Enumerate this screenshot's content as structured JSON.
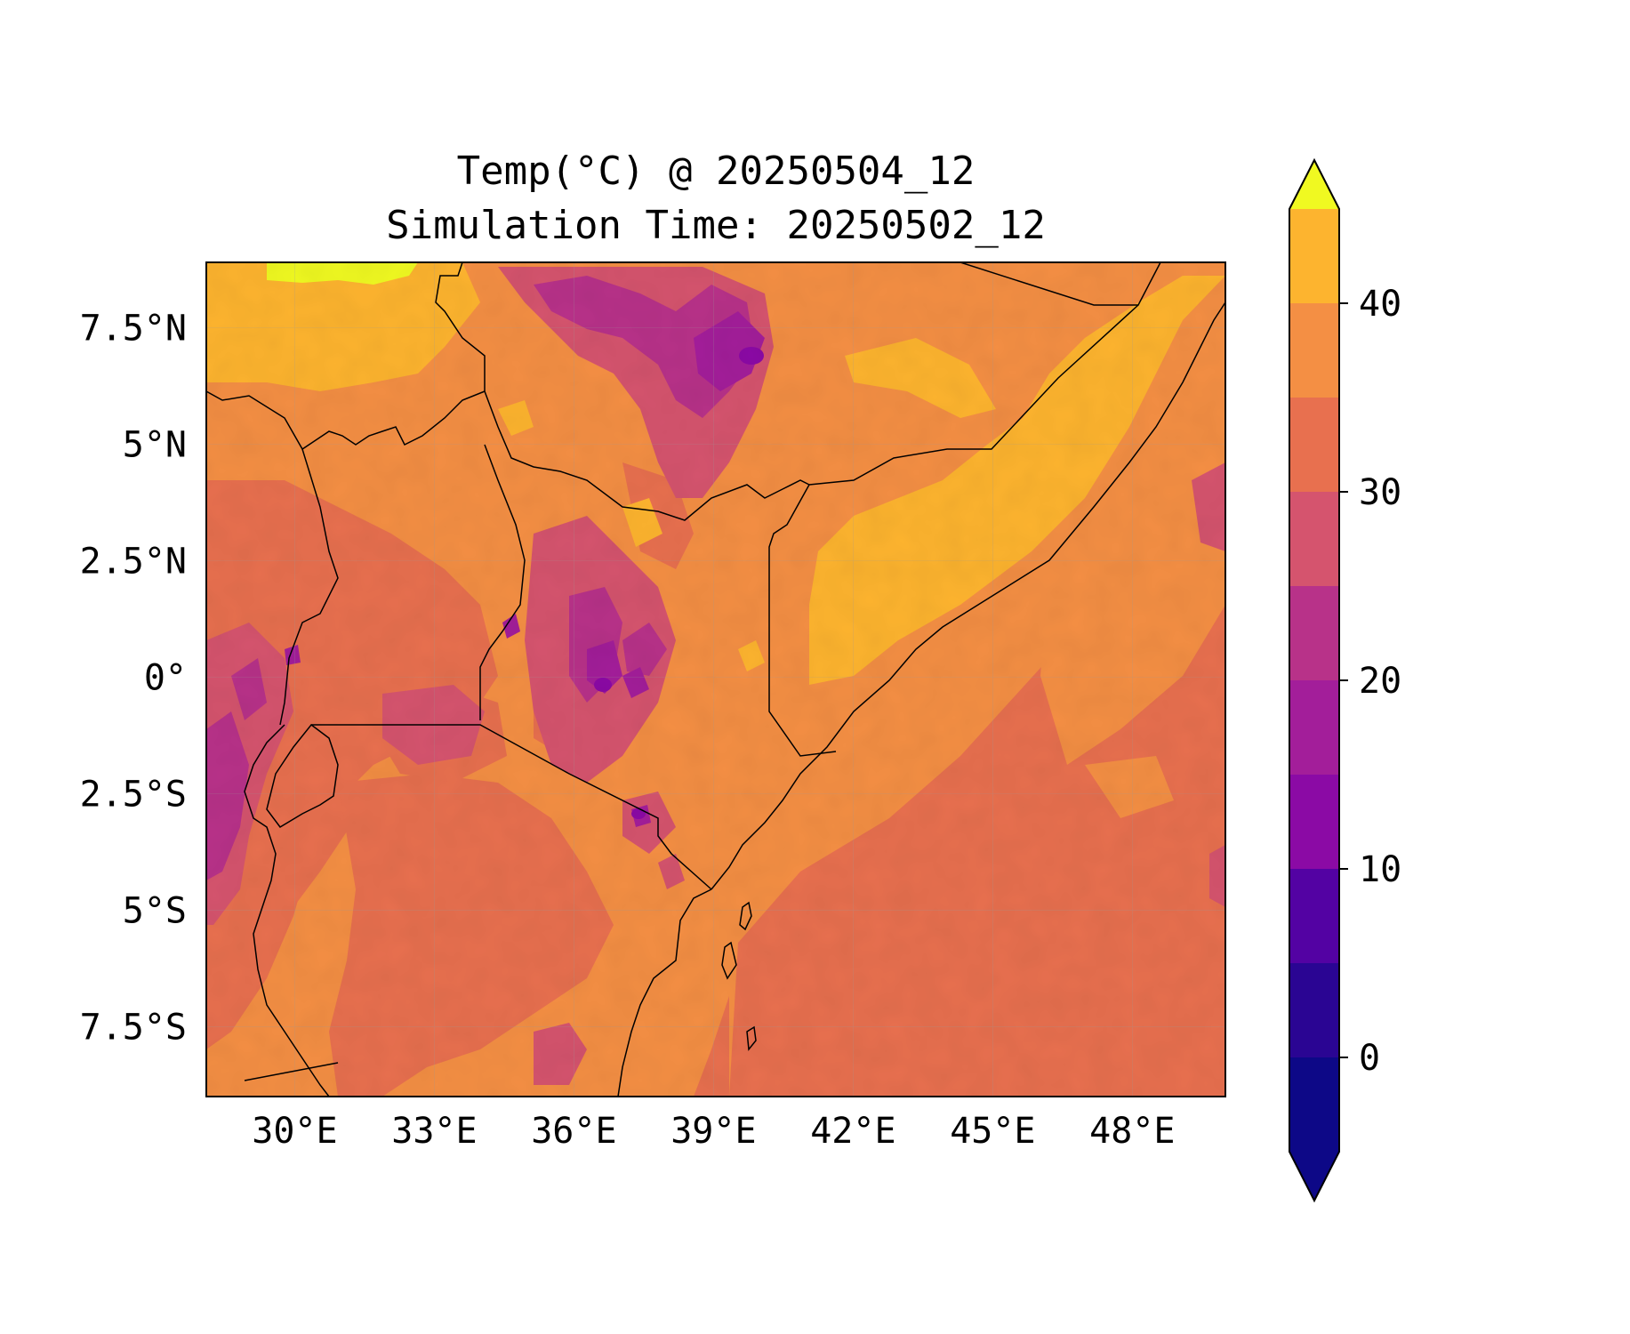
{
  "title": {
    "line1": "Temp(°C) @ 20250504_12",
    "line2": "Simulation Time: 20250502_12"
  },
  "axes": {
    "x_ticks": [
      "30°E",
      "33°E",
      "36°E",
      "39°E",
      "42°E",
      "45°E",
      "48°E"
    ],
    "y_ticks": [
      "7.5°N",
      "5°N",
      "2.5°N",
      "0°",
      "2.5°S",
      "5°S",
      "7.5°S"
    ],
    "lon_range": [
      28.1,
      50.0
    ],
    "lat_range": [
      -9.0,
      8.9
    ]
  },
  "colorbar": {
    "tick_labels": [
      "0",
      "10",
      "20",
      "30",
      "40"
    ],
    "extend": "both"
  },
  "chart_data": {
    "type": "heatmap",
    "projection": "PlateCarree (lon/lat)",
    "title": "Temp(°C) @ 20250504_12\nSimulation Time: 20250502_12",
    "x_ticks_deg": [
      30,
      33,
      36,
      39,
      42,
      45,
      48
    ],
    "y_ticks_deg": [
      7.5,
      5,
      2.5,
      0,
      -2.5,
      -5,
      -7.5
    ],
    "xlim": [
      28.1,
      50.0
    ],
    "ylim": [
      -9.0,
      8.9
    ],
    "grid": true,
    "levels": [
      -5,
      0,
      5,
      10,
      15,
      20,
      25,
      30,
      35,
      40,
      45
    ],
    "level_colors": [
      "#0d0887",
      "#2a0593",
      "#5302a3",
      "#8b0aa5",
      "#a31e9a",
      "#b83289",
      "#d5546e",
      "#e8704f",
      "#f48f44",
      "#fdb42f",
      "#f0f921"
    ],
    "extend_colors": {
      "under": "#0d0887",
      "over": "#f0f921"
    },
    "colormap": "plasma",
    "approximate_field": {
      "ocean": "25-30 °C",
      "somalia_coastal_belt": "35-40 °C",
      "horn_inland": "30-35 °C",
      "ethiopian_highlands": "5-20 °C",
      "kenyan_highlands": "10-25 °C",
      "lake_victoria": "25-30 °C",
      "sudan_north": "35-45 °C",
      "tanzania_interior": "25-35 °C"
    }
  }
}
